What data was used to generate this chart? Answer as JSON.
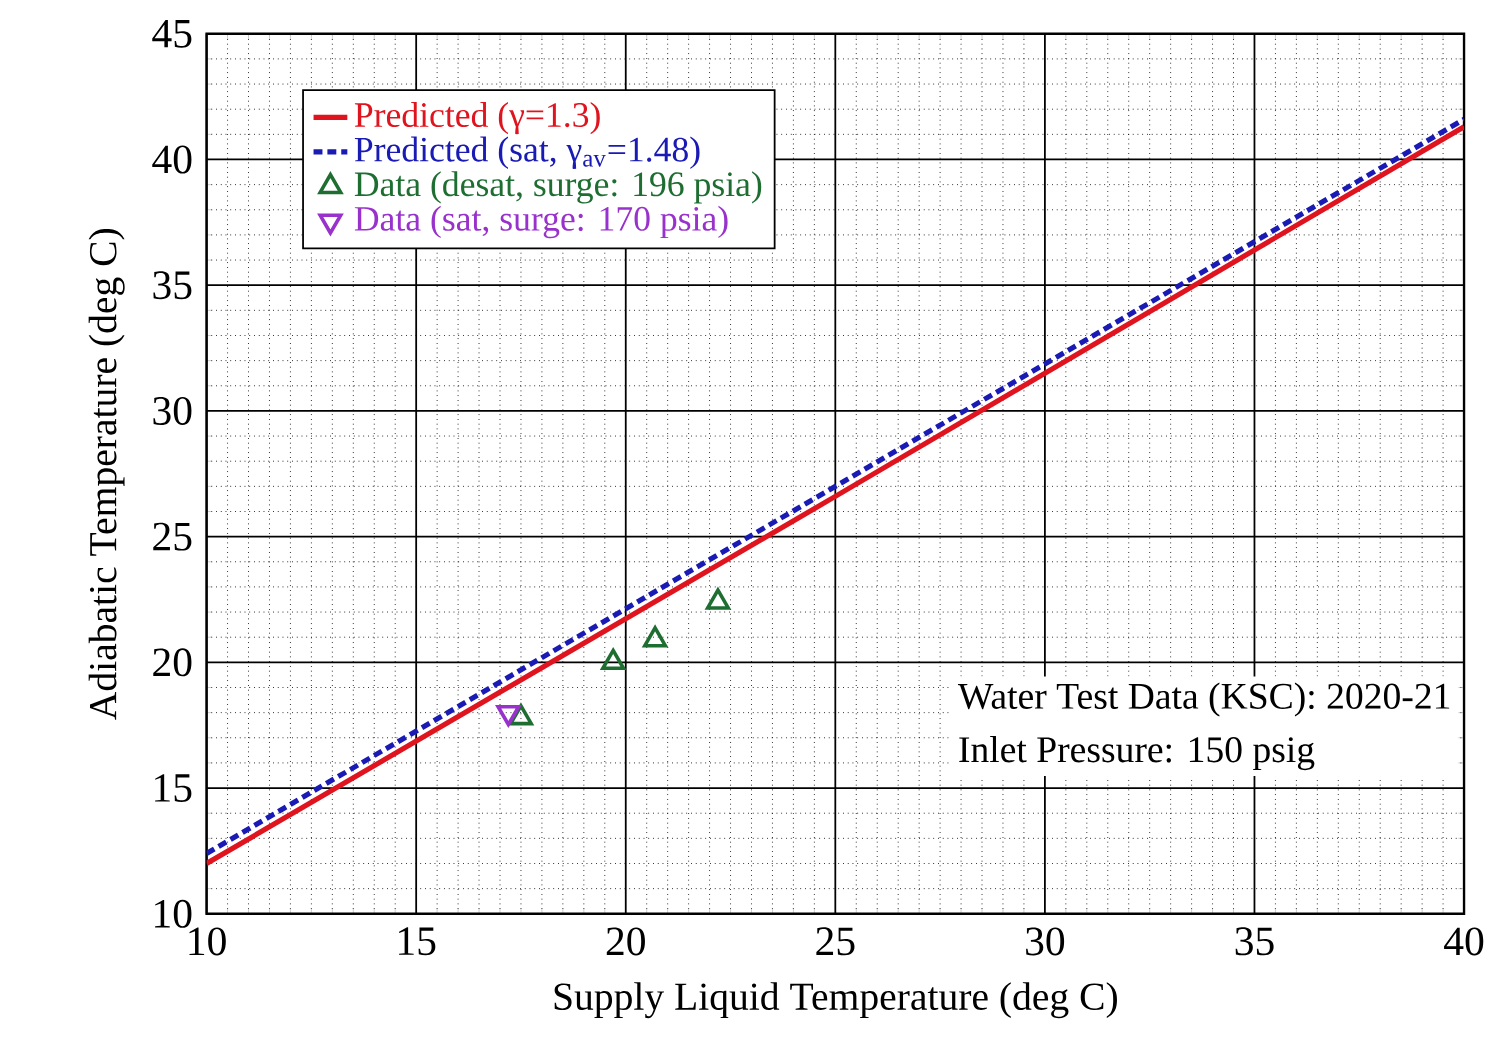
{
  "chart_data": {
    "type": "line",
    "xlabel": "Supply Liquid Temperature (deg C)",
    "ylabel": "Adiabatic Temperature (deg C)",
    "xlim": [
      10,
      40
    ],
    "ylim": [
      10,
      45
    ],
    "xticks": [
      10,
      15,
      20,
      25,
      30,
      35,
      40
    ],
    "yticks": [
      10,
      15,
      20,
      25,
      30,
      35,
      40,
      45
    ],
    "grid": true,
    "legend": "top left",
    "annotations": [
      "Water Test Data (KSC): 2020-21",
      "Inlet Pressure: 150 psig"
    ],
    "series": [
      {
        "name": "Predicted (γ=1.3)",
        "color": "#e0141e",
        "line_style": "solid",
        "marker": "none",
        "x": [
          10,
          25,
          40
        ],
        "values": [
          12.0,
          26.6,
          41.3
        ]
      },
      {
        "name": "Predicted (sat, γ$_{av}$=1.48)",
        "color": "#1a1ab4",
        "line_style": "dashed",
        "marker": "none",
        "x": [
          10,
          25,
          40
        ],
        "values": [
          12.4,
          27.0,
          41.6
        ]
      },
      {
        "name": "Data (desat, surge: 196 psia)",
        "type": "scatter",
        "color": "#1e6e32",
        "marker": "triangle",
        "x": [
          17.5,
          19.7,
          20.7,
          22.2
        ],
        "values": [
          17.8,
          20.0,
          20.9,
          22.4
        ]
      },
      {
        "name": "Data (sat, surge: 170 psia)",
        "type": "scatter",
        "color": "#9932cc",
        "marker": "triangle-down",
        "x": [
          17.2
        ],
        "values": [
          18.0
        ]
      }
    ]
  }
}
